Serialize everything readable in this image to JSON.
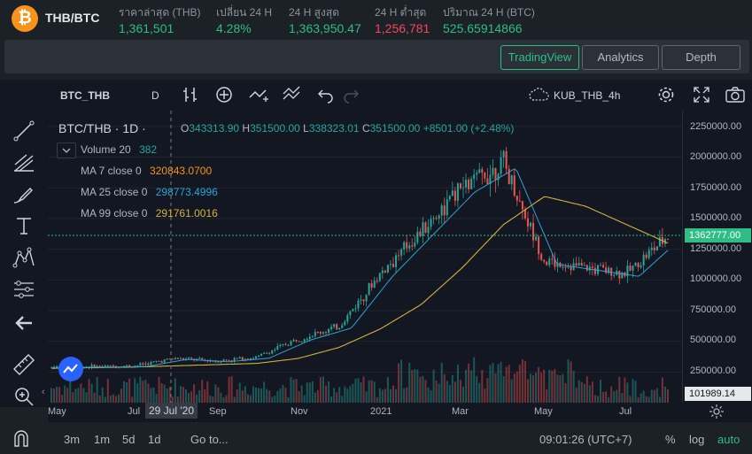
{
  "header": {
    "coin_symbol": "₿",
    "pair": "THB/BTC",
    "stats": [
      {
        "label": "ราคาล่าสุด (THB)",
        "value": "1,361,501"
      },
      {
        "label": "เปลี่ยน 24 H",
        "value": "4.28%"
      },
      {
        "label": "24 H สูงสุด",
        "value": "1,363,950.47"
      },
      {
        "label": "24 H ต่ำสุด",
        "value": "1,256,781"
      },
      {
        "label": "ปริมาณ 24 H (BTC)",
        "value": "525.65914866"
      }
    ]
  },
  "tabs": [
    {
      "label": "TradingView",
      "active": true
    },
    {
      "label": "Analytics",
      "active": false
    },
    {
      "label": "Depth",
      "active": false
    }
  ],
  "toolbar": {
    "symbol": "BTC_THB",
    "interval": "D",
    "layout_name": "KUB_THB_4h"
  },
  "legend": {
    "title": "BTC/THB · 1D ·",
    "o_label": "O",
    "o": "343313.90",
    "h_label": "H",
    "h": "351500.00",
    "l_label": "L",
    "l": "338323.01",
    "c_label": "C",
    "c": "351500.00",
    "change": "+8501.00 (+2.48%)",
    "volume_label": "Volume 20",
    "volume_value": "382",
    "ma7_label": "MA 7 close 0",
    "ma7_value": "320843.0700",
    "ma25_label": "MA 25 close 0",
    "ma25_value": "298773.4996",
    "ma99_label": "MA 99 close 0",
    "ma99_value": "291761.0016"
  },
  "colors": {
    "up": "#26a69a",
    "down": "#ef5350",
    "ma7": "#f7931a",
    "ma25": "#2ba4d6",
    "ma99": "#d4b13b",
    "accent": "#2ebd85"
  },
  "price_axis": [
    "2250000.00",
    "2000000.00",
    "1750000.00",
    "1500000.00",
    "1250000.00",
    "1000000.00",
    "750000.00",
    "500000.00",
    "250000.00"
  ],
  "current_price_label": "1362777.00",
  "volume_axis_label": "101989.14",
  "time_axis": [
    "May",
    "Jul",
    "Sep",
    "Nov",
    "2021",
    "Mar",
    "May",
    "Jul"
  ],
  "crosshair_date": "29 Jul '20",
  "chart_data": {
    "type": "line",
    "title": "BTC/THB · 1D",
    "xlabel": "",
    "ylabel": "",
    "ylim": [
      0,
      2350000
    ],
    "x": [
      "2020-05",
      "2020-06",
      "2020-07",
      "2020-08",
      "2020-09",
      "2020-10",
      "2020-11",
      "2020-12",
      "2021-01",
      "2021-02",
      "2021-03",
      "2021-04",
      "2021-05",
      "2021-06",
      "2021-07",
      "2021-08"
    ],
    "series": [
      {
        "name": "Close",
        "values": [
          290000,
          295000,
          300000,
          360000,
          340000,
          370000,
          520000,
          620000,
          1050000,
          1400000,
          1750000,
          1950000,
          1150000,
          1100000,
          1050000,
          1360000
        ]
      },
      {
        "name": "MA 99",
        "values": [
          280000,
          285000,
          290000,
          300000,
          310000,
          320000,
          360000,
          450000,
          600000,
          800000,
          1100000,
          1450000,
          1680000,
          1600000,
          1450000,
          1300000
        ]
      }
    ],
    "current_price": 1362777
  }
}
